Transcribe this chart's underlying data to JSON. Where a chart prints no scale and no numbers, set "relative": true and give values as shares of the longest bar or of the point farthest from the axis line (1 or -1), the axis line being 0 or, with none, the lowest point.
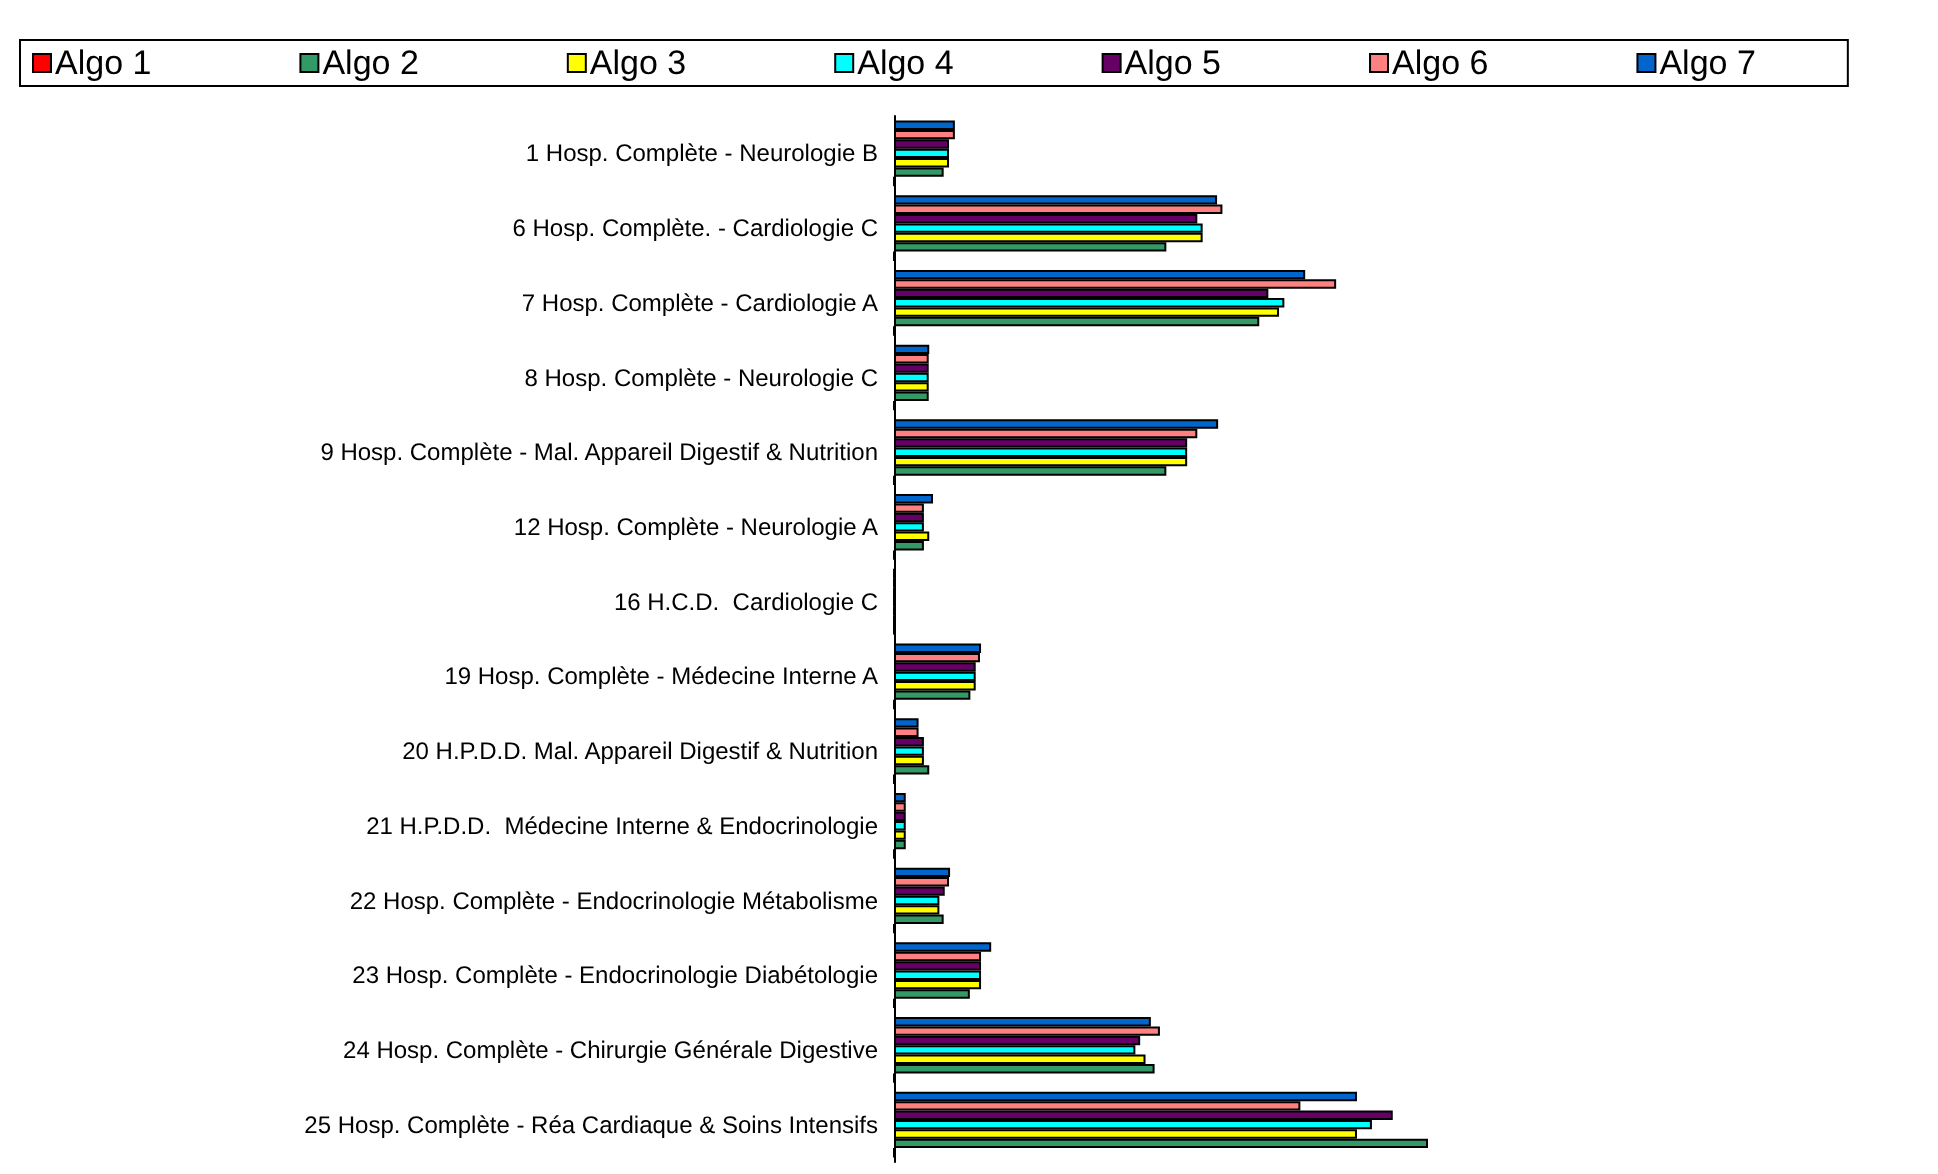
{
  "chart_data": {
    "type": "bar",
    "orientation": "horizontal",
    "relative": true,
    "legend": "top",
    "categories": [
      "1 Hosp. Complète - Neurologie B",
      "6 Hosp. Complète. - Cardiologie C",
      "7 Hosp. Complète - Cardiologie A",
      "8 Hosp. Complète - Neurologie C",
      "9 Hosp. Complète - Mal. Appareil Digestif & Nutrition",
      "12 Hosp. Complète - Neurologie A",
      "16 H.C.D.  Cardiologie C",
      "19 Hosp. Complète - Médecine Interne A",
      "20 H.P.D.D. Mal. Appareil Digestif & Nutrition",
      "21 H.P.D.D.  Médecine Interne & Endocrinologie",
      "22 Hosp. Complète - Endocrinologie Métabolisme",
      "23 Hosp. Complète - Endocrinologie Diabétologie",
      "24 Hosp. Complète - Chirurgie Générale Digestive",
      "25 Hosp. Complète - Réa Cardiaque & Soins Intensifs"
    ],
    "series": [
      {
        "name": "Algo 1",
        "color": "#ff0000",
        "values": [
          0,
          0,
          0,
          0,
          0,
          0,
          0,
          0,
          0,
          0,
          0,
          0,
          0,
          0
        ]
      },
      {
        "name": "Algo 2",
        "color": "#339966",
        "values": [
          0.093,
          0.51,
          0.684,
          0.065,
          0.51,
          0.056,
          0,
          0.143,
          0.066,
          0.022,
          0.093,
          0.142,
          0.488,
          1
        ]
      },
      {
        "name": "Algo 3",
        "color": "#ffff00",
        "values": [
          0.103,
          0.578,
          0.721,
          0.065,
          0.549,
          0.066,
          0,
          0.153,
          0.056,
          0.022,
          0.085,
          0.163,
          0.471,
          0.867
        ]
      },
      {
        "name": "Algo 4",
        "color": "#00ffff",
        "values": [
          0.103,
          0.578,
          0.731,
          0.065,
          0.549,
          0.056,
          0,
          0.153,
          0.056,
          0.022,
          0.085,
          0.163,
          0.452,
          0.895
        ]
      },
      {
        "name": "Algo 5",
        "color": "#660066",
        "values": [
          0.103,
          0.568,
          0.701,
          0.065,
          0.549,
          0.056,
          0,
          0.153,
          0.056,
          0.022,
          0.095,
          0.163,
          0.461,
          0.934
        ]
      },
      {
        "name": "Algo 6",
        "color": "#ff8080",
        "values": [
          0.114,
          0.615,
          0.828,
          0.065,
          0.568,
          0.056,
          0,
          0.161,
          0.046,
          0.022,
          0.103,
          0.163,
          0.498,
          0.761
        ]
      },
      {
        "name": "Algo 7",
        "color": "#0066cc",
        "values": [
          0.114,
          0.605,
          0.77,
          0.066,
          0.607,
          0.073,
          0,
          0.163,
          0.046,
          0.022,
          0.105,
          0.182,
          0.481,
          0.867
        ]
      }
    ]
  }
}
